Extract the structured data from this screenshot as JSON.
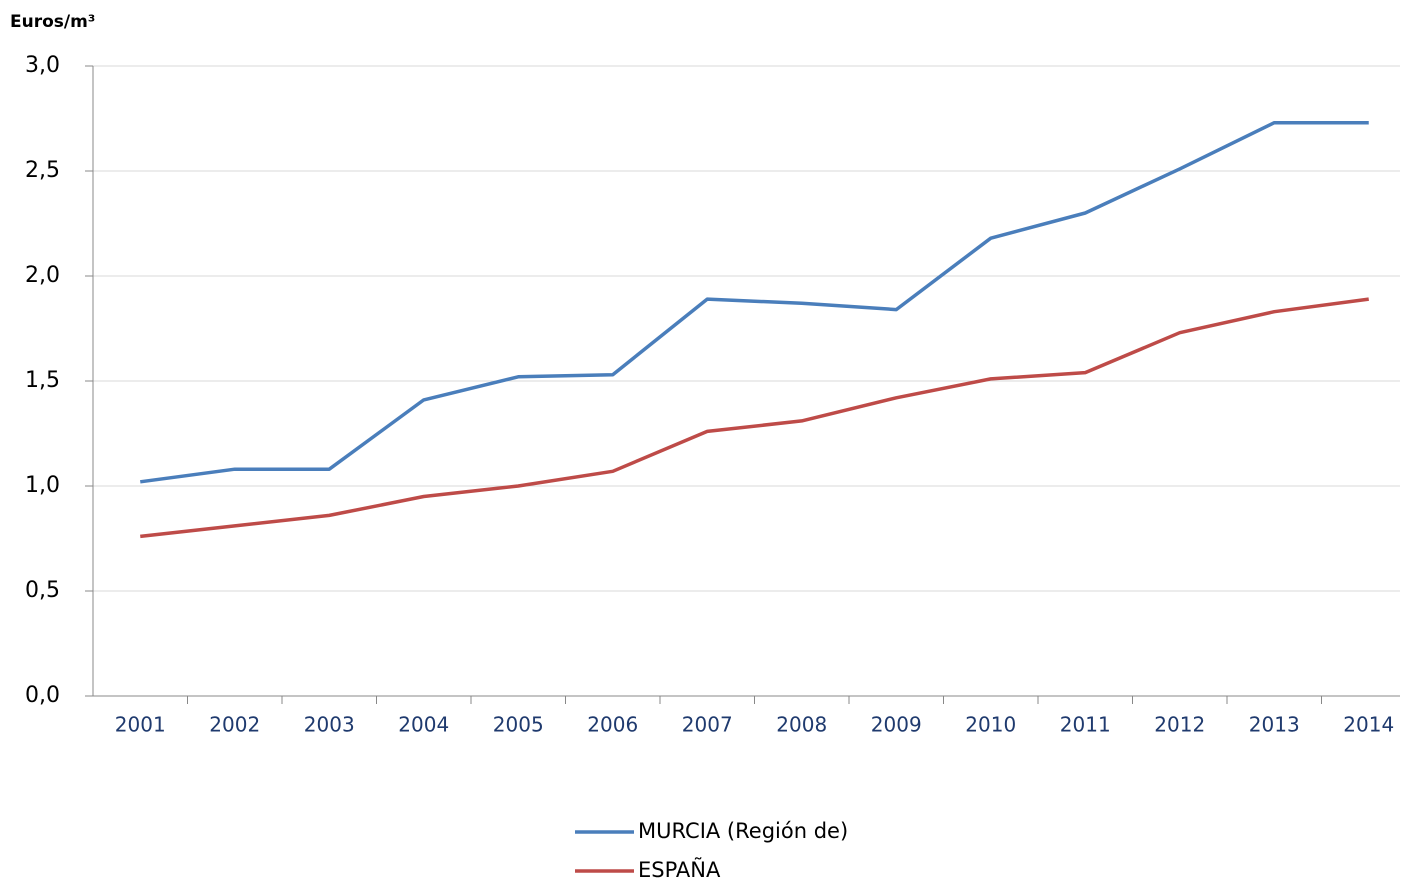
{
  "chart_data": {
    "type": "line",
    "ylabel": "Euros/m³",
    "categories": [
      "2001",
      "2002",
      "2003",
      "2004",
      "2005",
      "2006",
      "2007",
      "2008",
      "2009",
      "2010",
      "2011",
      "2012",
      "2013",
      "2014"
    ],
    "series": [
      {
        "name": "MURCIA (Región de)",
        "color": "#4a7ebb",
        "values": [
          1.02,
          1.08,
          1.08,
          1.41,
          1.52,
          1.53,
          1.89,
          1.87,
          1.84,
          2.18,
          2.3,
          2.51,
          2.73,
          2.73
        ]
      },
      {
        "name": "ESPAÑA",
        "color": "#be4b48",
        "values": [
          0.76,
          0.81,
          0.86,
          0.95,
          1.0,
          1.07,
          1.26,
          1.31,
          1.42,
          1.51,
          1.54,
          1.73,
          1.83,
          1.89
        ]
      }
    ],
    "ylim": [
      0,
      3
    ],
    "yticks": [
      {
        "value": 0,
        "label": "0,0"
      },
      {
        "value": 0.5,
        "label": "0,5"
      },
      {
        "value": 1,
        "label": "1,0"
      },
      {
        "value": 1.5,
        "label": "1,5"
      },
      {
        "value": 2,
        "label": "2,0"
      },
      {
        "value": 2.5,
        "label": "2,5"
      },
      {
        "value": 3,
        "label": "3,0"
      }
    ],
    "grid": true
  }
}
